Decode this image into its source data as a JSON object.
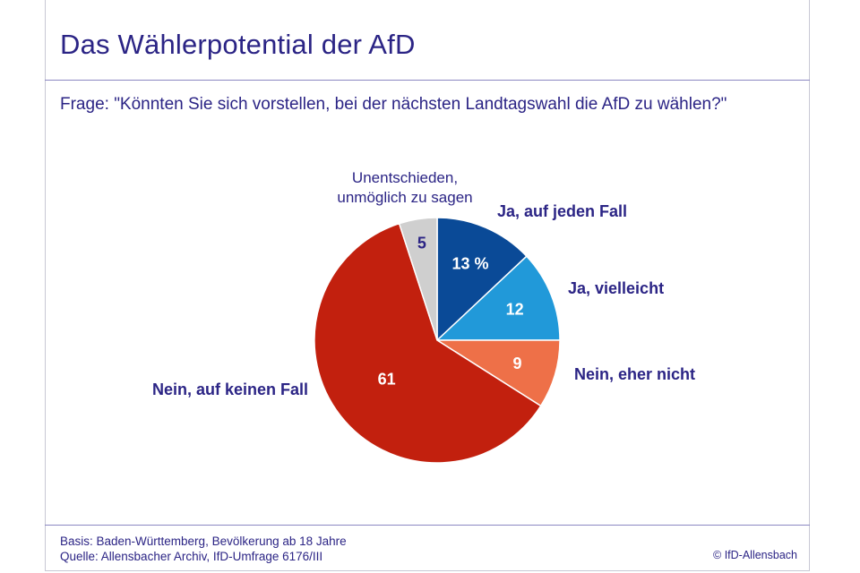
{
  "header": {
    "title": "Das Wählerpotential der AfD",
    "question": "Frage: \"Könnten Sie sich vorstellen, bei der nächsten Landtagswahl die AfD zu wählen?\""
  },
  "footer": {
    "basis": "Basis: Baden-Württemberg, Bevölkerung ab 18 Jahre",
    "source": "Quelle: Allensbacher Archiv, IfD-Umfrage 6176/III",
    "copyright": "© IfD-Allensbach"
  },
  "chart_data": {
    "type": "pie",
    "title": "Das Wählerpotential der AfD",
    "unit": "%",
    "slices": [
      {
        "label": "Ja, auf jeden Fall",
        "value": 13,
        "display": "13 %",
        "color": "#0a4a97",
        "text_color": "#ffffff"
      },
      {
        "label": "Ja, vielleicht",
        "value": 12,
        "display": "12",
        "color": "#2199d9",
        "text_color": "#ffffff"
      },
      {
        "label": "Nein, eher nicht",
        "value": 9,
        "display": "9",
        "color": "#ee7048",
        "text_color": "#ffffff"
      },
      {
        "label": "Nein, auf keinen Fall",
        "value": 61,
        "display": "61",
        "color": "#c2200e",
        "text_color": "#ffffff"
      },
      {
        "label_line1": "Unentschieden,",
        "label_line2": "unmöglich zu sagen",
        "value": 5,
        "display": "5",
        "color": "#cfcfcf",
        "text_color": "#2b2485"
      }
    ]
  }
}
